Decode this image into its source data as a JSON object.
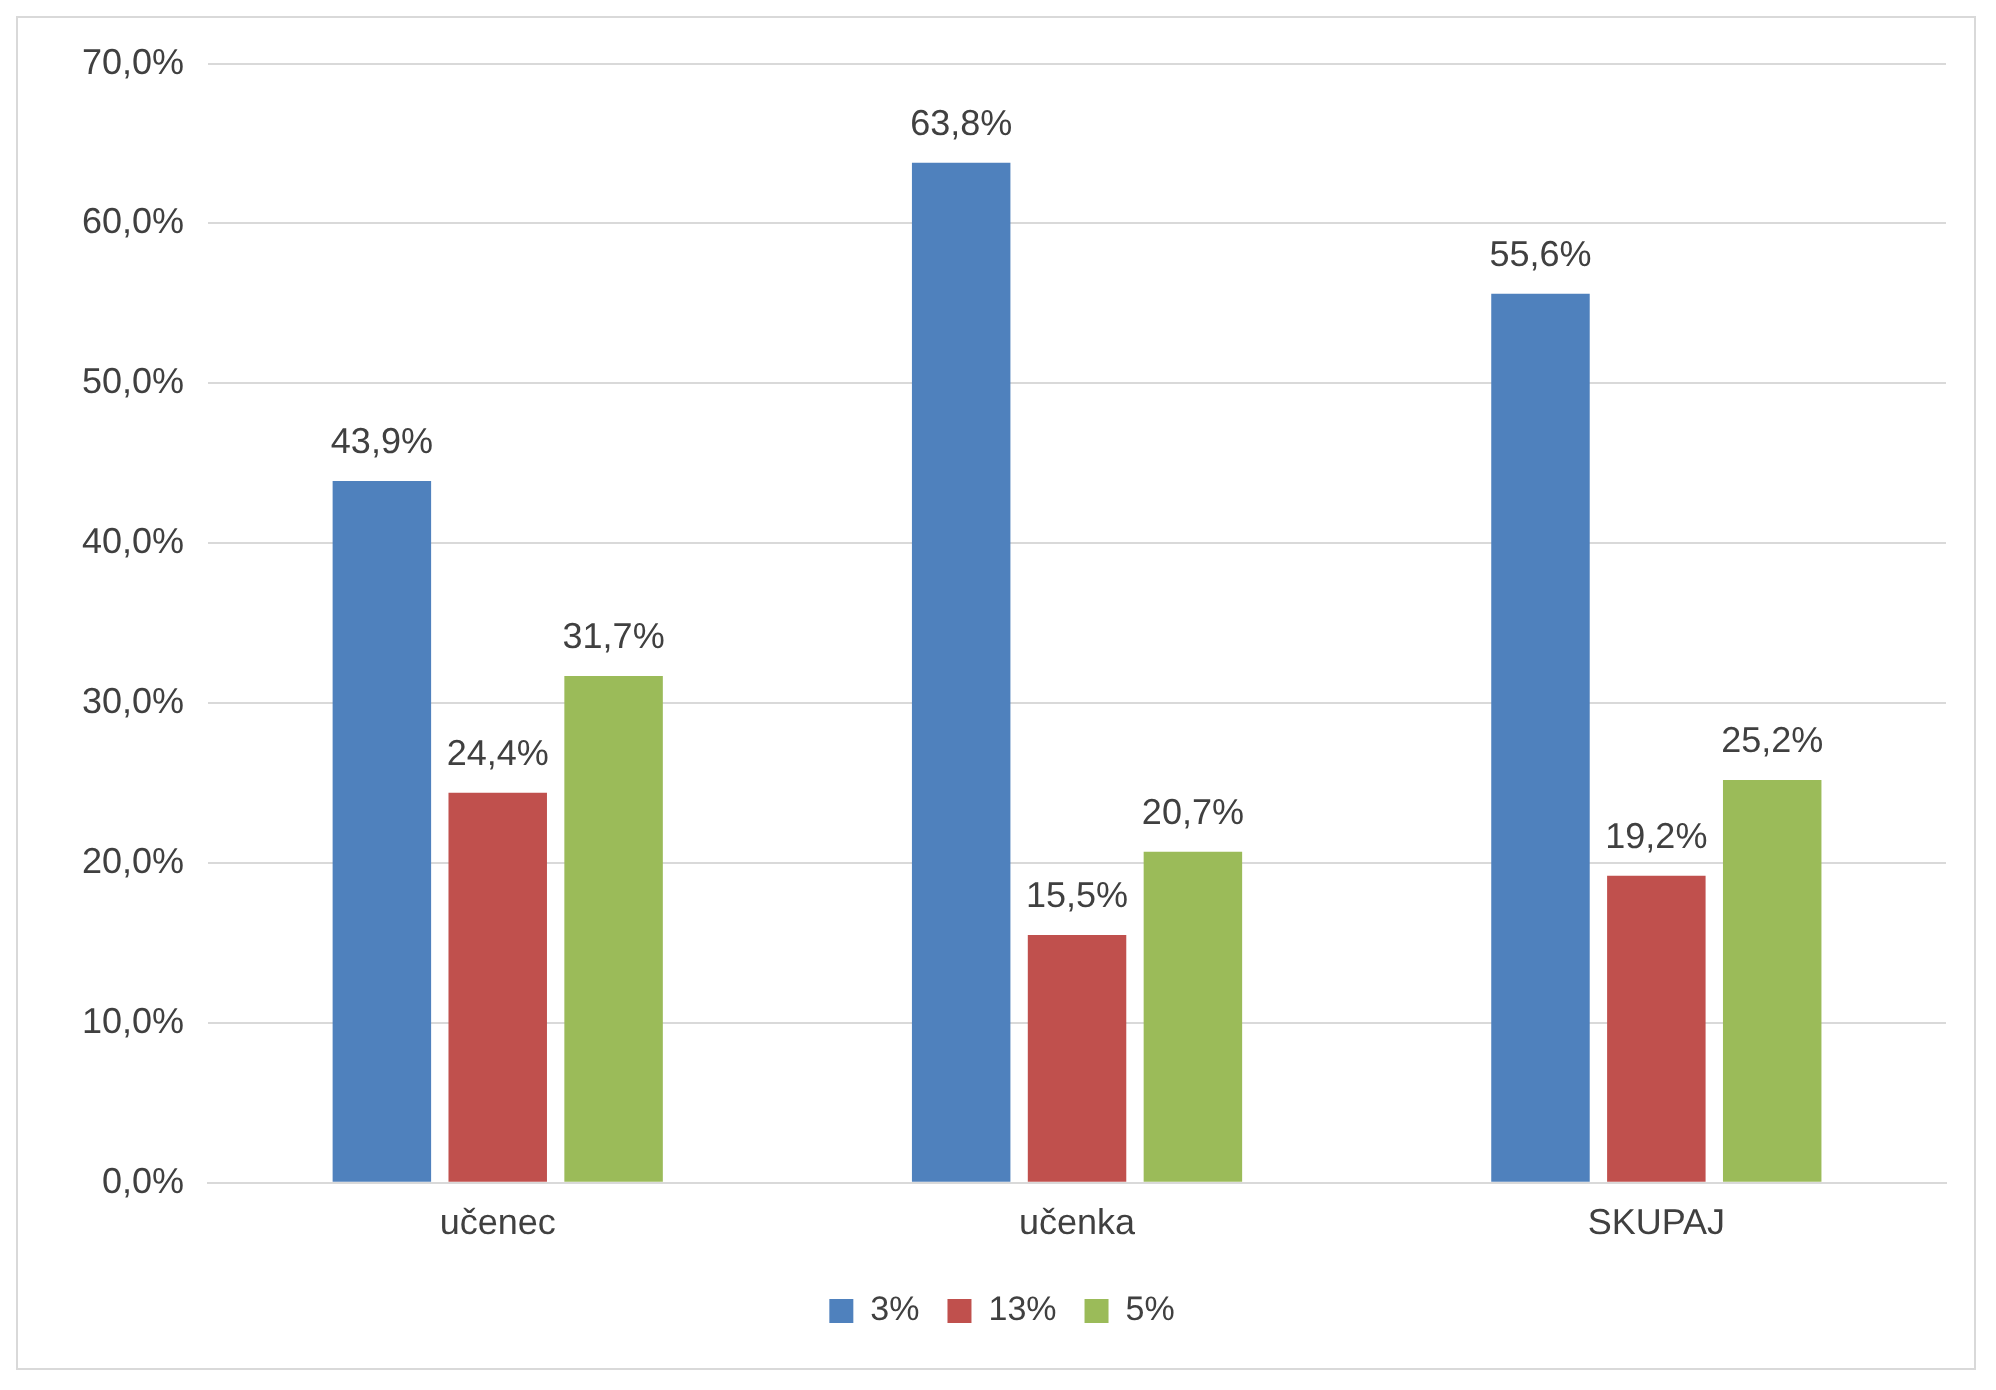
{
  "chart_data": {
    "type": "bar",
    "categories": [
      "učenec",
      "učenka",
      "SKUPAJ"
    ],
    "series": [
      {
        "name": "3%",
        "color": "#4f81bd",
        "values": [
          43.9,
          63.8,
          55.6
        ],
        "value_labels": [
          "43,9%",
          "63,8%",
          "55,6%"
        ]
      },
      {
        "name": "13%",
        "color": "#c0504d",
        "values": [
          24.4,
          15.5,
          19.2
        ],
        "value_labels": [
          "24,4%",
          "15,5%",
          "19,2%"
        ]
      },
      {
        "name": "5%",
        "color": "#9bbb59",
        "values": [
          31.7,
          20.7,
          25.2
        ],
        "value_labels": [
          "31,7%",
          "20,7%",
          "25,2%"
        ]
      }
    ],
    "ylim": [
      0,
      70
    ],
    "yticks": [
      {
        "value": 0,
        "label": "0,0%"
      },
      {
        "value": 10,
        "label": "10,0%"
      },
      {
        "value": 20,
        "label": "20,0%"
      },
      {
        "value": 30,
        "label": "30,0%"
      },
      {
        "value": 40,
        "label": "40,0%"
      },
      {
        "value": 50,
        "label": "50,0%"
      },
      {
        "value": 60,
        "label": "60,0%"
      },
      {
        "value": 70,
        "label": "70,0%"
      }
    ],
    "grid": "y",
    "legend": "bottom"
  }
}
